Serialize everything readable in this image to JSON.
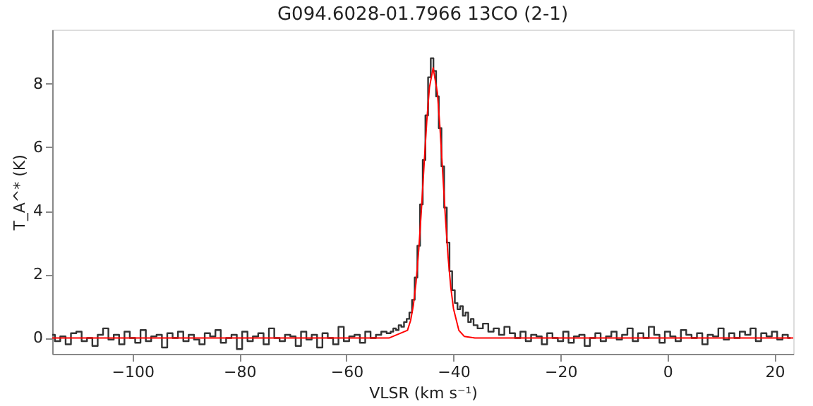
{
  "chart_data": {
    "type": "line",
    "title": "G094.6028-01.7966 13CO (2-1)",
    "xlabel": "VLSR (km s⁻¹)",
    "ylabel": "T_A^* (K)",
    "xlim": [
      -115,
      23.5
    ],
    "ylim": [
      -0.5,
      9.7
    ],
    "xticks": [
      -100,
      -80,
      -60,
      -40,
      -20,
      0,
      20
    ],
    "yticks": [
      0,
      2,
      4,
      6,
      8
    ],
    "grid": false,
    "series": [
      {
        "type": "step",
        "color": "#333333",
        "x": [
          -115,
          -114,
          -113,
          -112,
          -111,
          -110,
          -109,
          -108,
          -107,
          -106,
          -105,
          -104,
          -103,
          -102,
          -101,
          -100,
          -99,
          -98,
          -97,
          -96,
          -95,
          -94,
          -93,
          -92,
          -91,
          -90,
          -89,
          -88,
          -87,
          -86,
          -85,
          -84,
          -83,
          -82,
          -81,
          -80,
          -79,
          -78,
          -77,
          -76,
          -75,
          -74,
          -73,
          -72,
          -71,
          -70,
          -69,
          -68,
          -67,
          -66,
          -65,
          -64,
          -63,
          -62,
          -61,
          -60,
          -59,
          -58,
          -57,
          -56,
          -55,
          -54,
          -53,
          -52,
          -51.5,
          -51,
          -50.5,
          -50,
          -49.5,
          -49,
          -48.5,
          -48,
          -47.5,
          -47,
          -46.5,
          -46,
          -45.5,
          -45,
          -44.5,
          -44,
          -43.5,
          -43,
          -42.5,
          -42,
          -41.5,
          -41,
          -40.5,
          -40,
          -39.5,
          -39,
          -38.5,
          -38,
          -37.5,
          -37,
          -36.5,
          -36,
          -35,
          -34,
          -33,
          -32,
          -31,
          -30,
          -29,
          -28,
          -27,
          -26,
          -25,
          -24,
          -23,
          -22,
          -21,
          -20,
          -19,
          -18,
          -17,
          -16,
          -15,
          -14,
          -13,
          -12,
          -11,
          -10,
          -9,
          -8,
          -7,
          -6,
          -5,
          -4,
          -3,
          -2,
          -1,
          0,
          1,
          2,
          3,
          4,
          5,
          6,
          7,
          8,
          9,
          10,
          11,
          12,
          13,
          14,
          15,
          16,
          17,
          18,
          19,
          20,
          21,
          22,
          23
        ],
        "values": [
          0.1,
          -0.1,
          0.05,
          -0.2,
          0.15,
          0.2,
          -0.1,
          0.0,
          -0.25,
          0.1,
          0.3,
          -0.05,
          0.1,
          -0.2,
          0.2,
          0.0,
          -0.15,
          0.25,
          -0.1,
          0.05,
          0.1,
          -0.3,
          0.15,
          0.0,
          0.2,
          -0.1,
          0.1,
          -0.05,
          -0.2,
          0.15,
          0.05,
          0.25,
          -0.15,
          0.0,
          0.1,
          -0.35,
          0.2,
          -0.1,
          0.05,
          0.15,
          -0.2,
          0.3,
          0.0,
          -0.1,
          0.1,
          0.05,
          -0.25,
          0.2,
          -0.05,
          0.1,
          -0.3,
          0.15,
          0.0,
          -0.2,
          0.35,
          -0.1,
          0.05,
          0.1,
          -0.15,
          0.2,
          0.0,
          0.1,
          0.2,
          0.15,
          0.2,
          0.3,
          0.25,
          0.4,
          0.35,
          0.5,
          0.6,
          0.8,
          1.2,
          1.9,
          2.9,
          4.2,
          5.6,
          7.0,
          8.2,
          8.8,
          8.4,
          7.6,
          6.6,
          5.4,
          4.1,
          3.0,
          2.1,
          1.5,
          1.1,
          0.9,
          1.0,
          0.7,
          0.8,
          0.5,
          0.6,
          0.4,
          0.3,
          0.45,
          0.2,
          0.3,
          0.1,
          0.35,
          0.15,
          0.0,
          0.2,
          -0.1,
          0.1,
          0.05,
          -0.2,
          0.15,
          0.0,
          -0.1,
          0.2,
          -0.15,
          0.05,
          0.1,
          -0.25,
          0.0,
          0.15,
          -0.1,
          0.05,
          0.2,
          -0.05,
          0.1,
          0.3,
          -0.1,
          0.15,
          0.0,
          0.35,
          0.1,
          -0.15,
          0.2,
          0.05,
          -0.1,
          0.25,
          0.1,
          0.0,
          0.15,
          -0.2,
          0.1,
          0.05,
          0.3,
          -0.05,
          0.15,
          0.0,
          0.2,
          0.1,
          0.3,
          -0.1,
          0.15,
          0.05,
          0.2,
          -0.05,
          0.1,
          0.0
        ]
      },
      {
        "color": "#ff0000",
        "x": [
          -115,
          -52,
          -48.6,
          -48,
          -47.5,
          -47,
          -46.5,
          -46,
          -45.5,
          -45,
          -44.5,
          -43.8,
          -43,
          -42.5,
          -42,
          -41.5,
          -41,
          -40.5,
          -40,
          -39,
          -38,
          -36,
          23.5
        ],
        "values": [
          0,
          0,
          0.24,
          0.56,
          1.03,
          1.75,
          2.76,
          4.03,
          5.44,
          6.81,
          7.88,
          8.5,
          7.7,
          6.55,
          5.16,
          3.76,
          2.53,
          1.58,
          0.92,
          0.24,
          0.05,
          0,
          0
        ]
      }
    ]
  }
}
